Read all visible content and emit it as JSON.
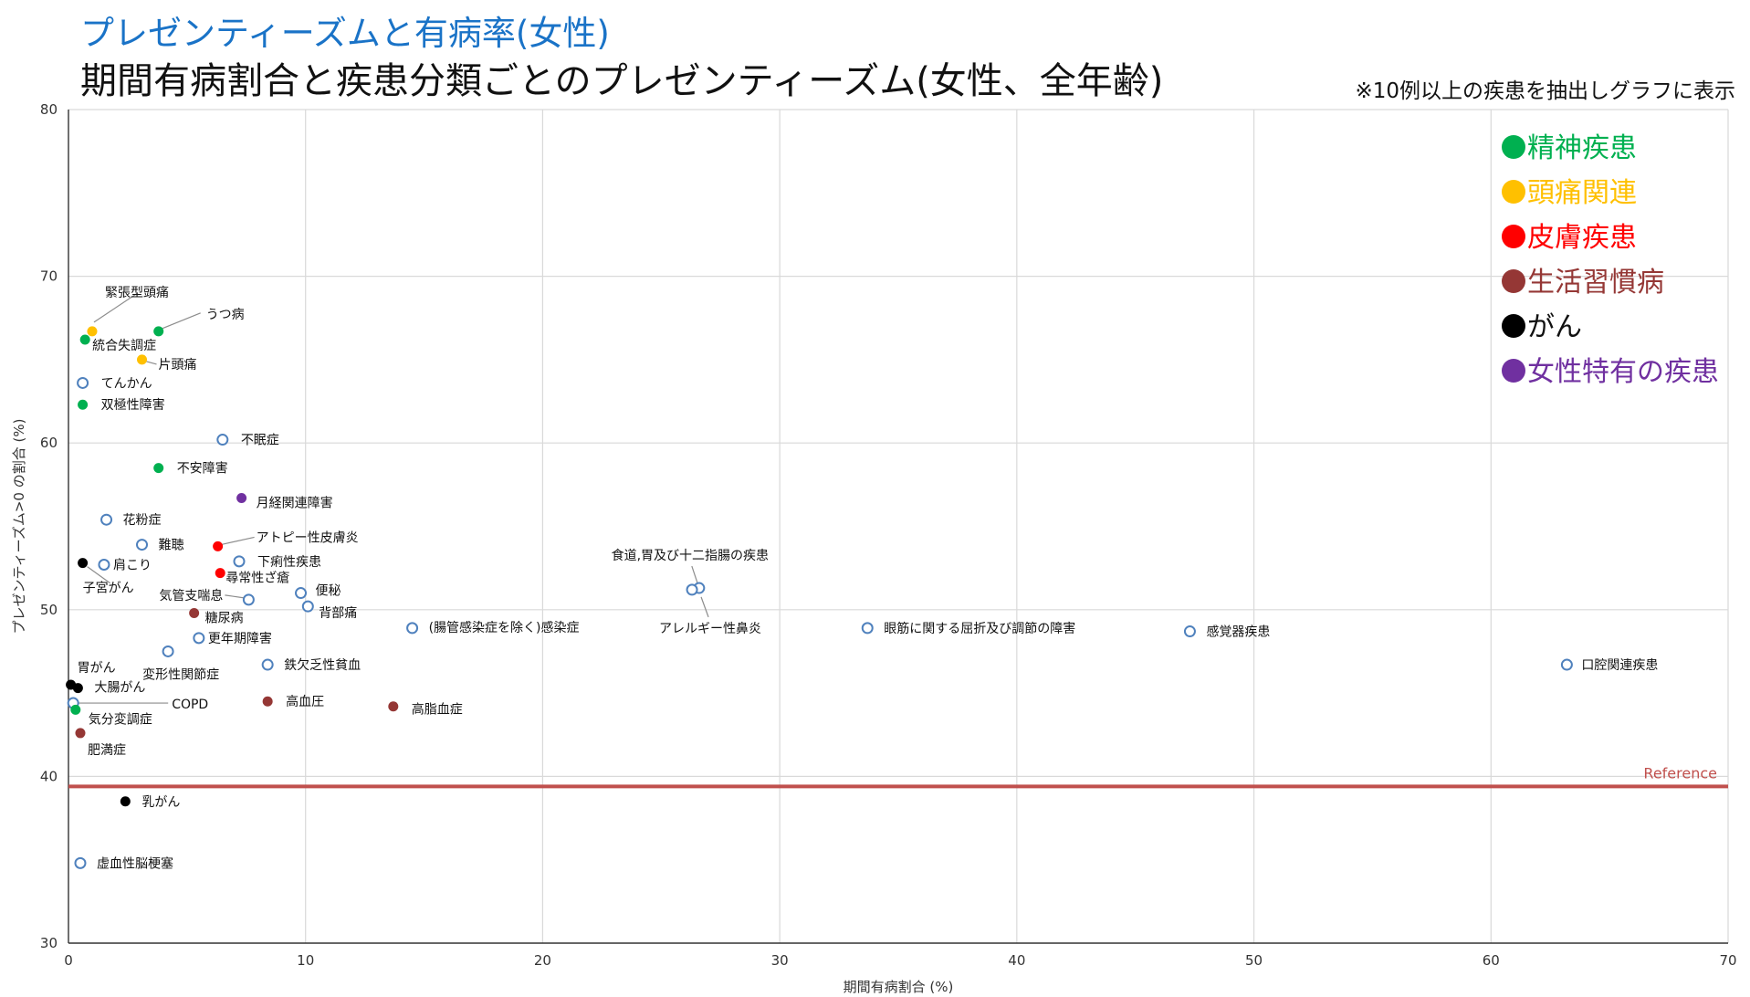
{
  "header": {
    "title": "プレゼンティーズムと有病率(女性)",
    "subtitle": "期間有病割合と疾患分類ごとのプレゼンティーズム(女性、全年齢)",
    "note": "※10例以上の疾患を抽出しグラフに表示"
  },
  "colors": {
    "mental": "#00b050",
    "headache": "#ffc000",
    "skin": "#ff0000",
    "lifestyle": "#953735",
    "cancer": "#000000",
    "female": "#7030a0",
    "other": "#4f81bd",
    "reference": "#c0504d"
  },
  "chart_data": {
    "type": "scatter",
    "xlabel": "期間有病割合 (%)",
    "ylabel": "プレゼンティーズム>0 の割合 (%)",
    "xlim": [
      0,
      70
    ],
    "ylim": [
      30,
      80
    ],
    "xticks": [
      0,
      10,
      20,
      30,
      40,
      50,
      60,
      70
    ],
    "yticks": [
      30,
      40,
      50,
      60,
      70,
      80
    ],
    "grid": true,
    "legend_position": "top-right",
    "reference": {
      "label": "Reference",
      "y": 39.4
    },
    "legend": [
      {
        "name": "精神疾患",
        "category": "mental"
      },
      {
        "name": "頭痛関連",
        "category": "headache"
      },
      {
        "name": "皮膚疾患",
        "category": "skin"
      },
      {
        "name": "生活習慣病",
        "category": "lifestyle"
      },
      {
        "name": "がん",
        "category": "cancer"
      },
      {
        "name": "女性特有の疾患",
        "category": "female"
      }
    ],
    "points": [
      {
        "label": "緊張型頭痛",
        "x": 1.0,
        "y": 66.7,
        "category": "headache"
      },
      {
        "label": "うつ病",
        "x": 3.8,
        "y": 66.7,
        "category": "mental"
      },
      {
        "label": "統合失調症",
        "x": 0.7,
        "y": 66.2,
        "category": "mental"
      },
      {
        "label": "片頭痛",
        "x": 3.1,
        "y": 65.0,
        "category": "headache"
      },
      {
        "label": "てんかん",
        "x": 0.6,
        "y": 63.6,
        "category": "other"
      },
      {
        "label": "双極性障害",
        "x": 0.6,
        "y": 62.3,
        "category": "mental"
      },
      {
        "label": "不眠症",
        "x": 6.5,
        "y": 60.2,
        "category": "other"
      },
      {
        "label": "不安障害",
        "x": 3.8,
        "y": 58.5,
        "category": "mental"
      },
      {
        "label": "月経関連障害",
        "x": 7.3,
        "y": 56.7,
        "category": "female"
      },
      {
        "label": "花粉症",
        "x": 1.6,
        "y": 55.4,
        "category": "other"
      },
      {
        "label": "アトピー性皮膚炎",
        "x": 6.3,
        "y": 53.8,
        "category": "skin"
      },
      {
        "label": "難聴",
        "x": 3.1,
        "y": 53.9,
        "category": "other"
      },
      {
        "label": "下痢性疾患",
        "x": 7.2,
        "y": 52.9,
        "category": "other"
      },
      {
        "label": "子宮がん",
        "x": 0.6,
        "y": 52.8,
        "category": "cancer"
      },
      {
        "label": "肩こり",
        "x": 1.5,
        "y": 52.7,
        "category": "other"
      },
      {
        "label": "尋常性ざ瘡",
        "x": 6.4,
        "y": 52.2,
        "category": "skin"
      },
      {
        "label": "便秘",
        "x": 9.8,
        "y": 51.0,
        "category": "other"
      },
      {
        "label": "気管支喘息",
        "x": 7.6,
        "y": 50.6,
        "category": "other"
      },
      {
        "label": "背部痛",
        "x": 10.1,
        "y": 50.2,
        "category": "other"
      },
      {
        "label": "糖尿病",
        "x": 5.3,
        "y": 49.8,
        "category": "lifestyle"
      },
      {
        "label": "(腸管感染症を除く)感染症",
        "x": 14.5,
        "y": 48.9,
        "category": "other"
      },
      {
        "label": "更年期障害",
        "x": 5.5,
        "y": 48.3,
        "category": "other"
      },
      {
        "label": "変形性関節症",
        "x": 4.2,
        "y": 47.5,
        "category": "other"
      },
      {
        "label": "鉄欠乏性貧血",
        "x": 8.4,
        "y": 46.7,
        "category": "other"
      },
      {
        "label": "胃がん",
        "x": 0.1,
        "y": 45.5,
        "category": "cancer"
      },
      {
        "label": "大腸がん",
        "x": 0.4,
        "y": 45.3,
        "category": "cancer"
      },
      {
        "label": "COPD",
        "x": 0.2,
        "y": 44.4,
        "category": "other"
      },
      {
        "label": "高血圧",
        "x": 8.4,
        "y": 44.5,
        "category": "lifestyle"
      },
      {
        "label": "高脂血症",
        "x": 13.7,
        "y": 44.2,
        "category": "lifestyle"
      },
      {
        "label": "気分変調症",
        "x": 0.3,
        "y": 44.0,
        "category": "mental"
      },
      {
        "label": "肥満症",
        "x": 0.5,
        "y": 42.6,
        "category": "lifestyle"
      },
      {
        "label": "乳がん",
        "x": 2.4,
        "y": 38.5,
        "category": "cancer"
      },
      {
        "label": "虚血性脳梗塞",
        "x": 0.5,
        "y": 34.8,
        "category": "other"
      },
      {
        "label": "食道,胃及び十二指腸の疾患",
        "x": 26.6,
        "y": 51.3,
        "category": "other"
      },
      {
        "label": "アレルギー性鼻炎",
        "x": 26.3,
        "y": 51.2,
        "category": "other"
      },
      {
        "label": "眼筋に関する屈折及び調節の障害",
        "x": 33.7,
        "y": 48.9,
        "category": "other"
      },
      {
        "label": "感覚器疾患",
        "x": 47.3,
        "y": 48.7,
        "category": "other"
      },
      {
        "label": "口腔関連疾患",
        "x": 63.2,
        "y": 46.7,
        "category": "other"
      }
    ]
  }
}
